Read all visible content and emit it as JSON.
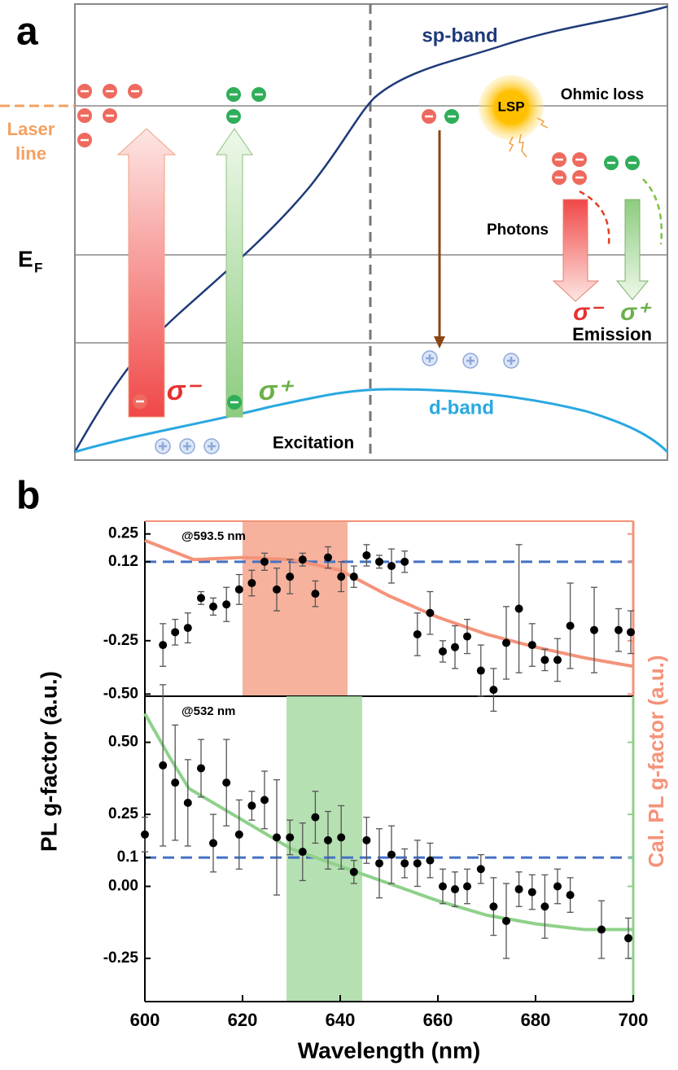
{
  "panel_a": {
    "label": "a",
    "sp_band": "sp-band",
    "d_band": "d-band",
    "ohmic_loss": "Ohmic loss",
    "lsp": "LSP",
    "laser_line": [
      "Laser",
      "line"
    ],
    "fermi": {
      "base": "E",
      "sub": "F"
    },
    "photons": "Photons",
    "emission": "Emission",
    "excitation": "Excitation",
    "excitation_minus": "σ⁻",
    "excitation_plus": "σ⁺",
    "emission_minus": "σ⁻",
    "emission_plus": "σ⁺"
  },
  "panel_b": {
    "label": "b",
    "ylabel": "PL g-factor (a.u.)",
    "y2label": "Cal. PL g-factor (a.u.)"
  },
  "chart_data": [
    {
      "type": "scatter",
      "annotation": "@593.5 nm",
      "color": "#000000",
      "axis_color": "#f4937a",
      "xlim": [
        600,
        700
      ],
      "ylim": [
        -0.51,
        0.31
      ],
      "yticks": [
        0.25,
        0.12,
        -0.25,
        {
          "value": -0.5,
          "label": "-0.50"
        }
      ],
      "hline": 0.12,
      "hline_color": "#4472c4",
      "band": [
        620,
        641.5
      ],
      "band_color": "#f4a58c",
      "x": [
        603.7,
        606.2,
        608.8,
        611.5,
        614,
        616.7,
        619.3,
        621.9,
        624.5,
        627,
        629.7,
        632.3,
        634.9,
        637.5,
        640.2,
        642.8,
        645.4,
        648,
        650.5,
        653.2,
        655.8,
        658.4,
        661,
        663.5,
        666,
        668.8,
        671.4,
        674,
        676.6,
        679.3,
        681.9,
        684.5,
        687.1,
        692,
        697,
        699.5
      ],
      "values": [
        -0.27,
        -0.21,
        -0.19,
        -0.05,
        -0.09,
        -0.08,
        -0.01,
        0.02,
        0.12,
        -0.01,
        0.05,
        0.13,
        -0.03,
        0.14,
        0.05,
        0.05,
        0.15,
        0.12,
        0.1,
        0.12,
        -0.22,
        -0.12,
        -0.3,
        -0.28,
        -0.23,
        -0.39,
        -0.48,
        -0.26,
        -0.1,
        -0.27,
        -0.34,
        -0.34,
        -0.18,
        -0.2,
        -0.2,
        -0.21
      ],
      "errors": [
        0.1,
        0.06,
        0.07,
        0.03,
        0.04,
        0.08,
        0.07,
        0.06,
        0.04,
        0.1,
        0.08,
        0.03,
        0.06,
        0.05,
        0.07,
        0.05,
        0.05,
        0.03,
        0.08,
        0.05,
        0.1,
        0.1,
        0.05,
        0.1,
        0.08,
        0.12,
        0.1,
        0.17,
        0.3,
        0.1,
        0.05,
        0.1,
        0.2,
        0.2,
        0.1,
        0.1
      ],
      "curve": {
        "color": "#f4937a",
        "x": [
          600,
          610,
          620,
          630,
          640,
          650,
          660,
          670,
          680,
          690,
          700
        ],
        "values": [
          0.22,
          0.13,
          0.14,
          0.13,
          0.08,
          -0.04,
          -0.14,
          -0.22,
          -0.28,
          -0.33,
          -0.37
        ]
      }
    },
    {
      "type": "scatter",
      "annotation": "@532 nm",
      "color": "#000000",
      "axis_color": "#8fd18a",
      "xlim": [
        600,
        700
      ],
      "ylim": [
        -0.4,
        0.66
      ],
      "yticks": [
        {
          "value": 0.5,
          "label": "0.50"
        },
        0.25,
        0.1,
        {
          "value": 0,
          "label": "0.00"
        },
        -0.25
      ],
      "xticks": [
        600,
        620,
        640,
        660,
        680,
        700
      ],
      "xlabel": "Wavelength (nm)",
      "hline": 0.1,
      "hline_color": "#4472c4",
      "band": [
        629,
        644.5
      ],
      "band_color": "#a8dba4",
      "x": [
        600,
        603.7,
        606.2,
        608.8,
        611.5,
        614,
        616.7,
        619.3,
        621.9,
        624.5,
        627,
        629.7,
        632.3,
        634.9,
        637.5,
        640.2,
        642.8,
        645.4,
        648,
        650.5,
        653.2,
        655.8,
        658.4,
        661,
        663.5,
        666,
        668.8,
        671.4,
        674,
        676.6,
        679.3,
        681.9,
        684.5,
        687.1,
        693.5,
        699
      ],
      "values": [
        0.18,
        0.42,
        0.36,
        0.29,
        0.41,
        0.15,
        0.36,
        0.18,
        0.28,
        0.3,
        0.17,
        0.17,
        0.12,
        0.24,
        0.16,
        0.17,
        0.05,
        0.16,
        0.08,
        0.11,
        0.08,
        0.08,
        0.09,
        0,
        -0.01,
        0,
        0.06,
        -0.07,
        -0.12,
        -0.01,
        -0.02,
        -0.07,
        0,
        -0.03,
        -0.15,
        -0.18
      ],
      "errors": [
        0.06,
        0.28,
        0.2,
        0.15,
        0.1,
        0.1,
        0.15,
        0.12,
        0.05,
        0.1,
        0.2,
        0.06,
        0.1,
        0.09,
        0.1,
        0.11,
        0.04,
        0.08,
        0.12,
        0.1,
        0.05,
        0.08,
        0.06,
        0.06,
        0.06,
        0.06,
        0.05,
        0.1,
        0.13,
        0.06,
        0.06,
        0.11,
        0.06,
        0.06,
        0.1,
        0.07
      ],
      "curve": {
        "color": "#8fd18a",
        "x": [
          600,
          605,
          609,
          620,
          630,
          640,
          650,
          660,
          670,
          680,
          690,
          700
        ],
        "values": [
          0.6,
          0.45,
          0.34,
          0.23,
          0.13,
          0.07,
          0.01,
          -0.05,
          -0.1,
          -0.13,
          -0.15,
          -0.15
        ]
      }
    }
  ]
}
